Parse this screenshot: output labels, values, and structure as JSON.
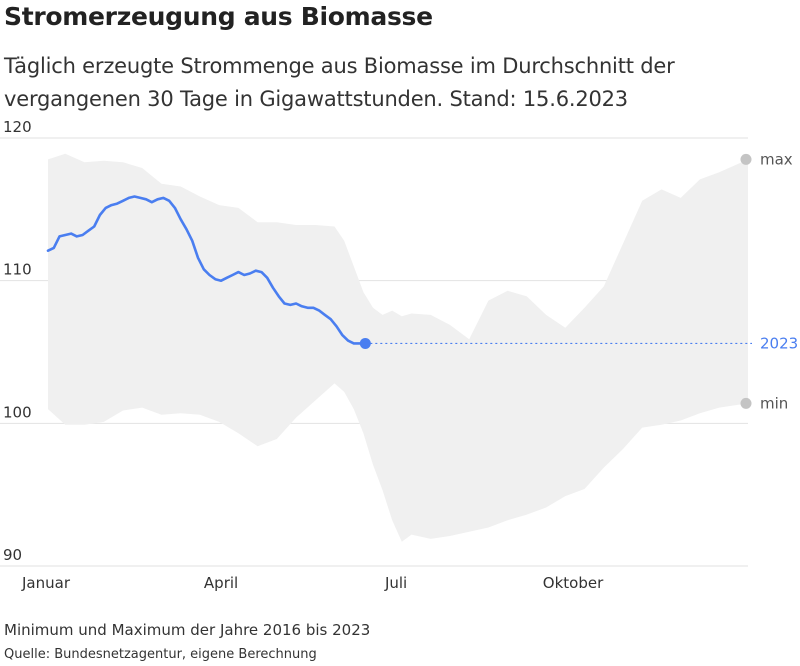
{
  "title": "Stromerzeugung aus Biomasse",
  "subtitle": "Täglich erzeugte Strommenge aus Biomasse im Durchschnitt der vergangenen 30 Tage in Gigawattstunden. Stand: 15.6.2023",
  "note": "Minimum und Maximum der Jahre 2016 bis 2023",
  "source": "Quelle: Bundesnetzagentur, eigene Berechnung",
  "colors": {
    "line": "#4a7ef0",
    "band": "#f0f0f0",
    "marker_gray": "#c4c4c4",
    "grid": "#e2e2e2"
  },
  "chart_data": {
    "type": "line",
    "title": "Stromerzeugung aus Biomasse",
    "xlabel": "",
    "ylabel": "",
    "ylim": [
      90,
      120
    ],
    "xlim": [
      1,
      365
    ],
    "x_unit": "day of year",
    "yticks": [
      90,
      100,
      110,
      120
    ],
    "xticks": [
      {
        "label": "Januar",
        "day": 1
      },
      {
        "label": "April",
        "day": 91
      },
      {
        "label": "Juli",
        "day": 182
      },
      {
        "label": "Oktober",
        "day": 274
      }
    ],
    "grid": true,
    "band": {
      "days": [
        1,
        10,
        20,
        30,
        40,
        50,
        60,
        70,
        80,
        90,
        100,
        110,
        120,
        130,
        140,
        150,
        155,
        160,
        165,
        170,
        175,
        180,
        185,
        190,
        200,
        210,
        220,
        230,
        240,
        250,
        260,
        270,
        280,
        290,
        300,
        310,
        320,
        330,
        340,
        350,
        360,
        365
      ],
      "max": [
        118.5,
        118.9,
        118.3,
        118.4,
        118.3,
        117.9,
        116.8,
        116.6,
        115.9,
        115.3,
        115.1,
        114.1,
        114.1,
        113.9,
        113.9,
        113.8,
        112.8,
        111.0,
        109.2,
        108.1,
        107.6,
        107.9,
        107.5,
        107.7,
        107.6,
        106.9,
        105.9,
        108.6,
        109.3,
        108.9,
        107.6,
        106.7,
        108.1,
        109.6,
        112.6,
        115.6,
        116.4,
        115.8,
        117.1,
        117.6,
        118.2,
        118.5
      ],
      "min": [
        101.0,
        99.9,
        99.9,
        100.1,
        100.9,
        101.1,
        100.6,
        100.7,
        100.6,
        100.1,
        99.3,
        98.4,
        98.9,
        100.4,
        101.6,
        102.8,
        102.2,
        101.0,
        99.3,
        97.1,
        95.3,
        93.2,
        91.7,
        92.2,
        91.9,
        92.1,
        92.4,
        92.7,
        93.2,
        93.6,
        94.1,
        94.9,
        95.4,
        96.9,
        98.2,
        99.7,
        99.9,
        100.2,
        100.7,
        101.1,
        101.3,
        101.4
      ]
    },
    "series": [
      {
        "name": "2023",
        "x": [
          1,
          4,
          7,
          10,
          13,
          16,
          19,
          22,
          25,
          28,
          31,
          34,
          37,
          40,
          43,
          46,
          49,
          52,
          55,
          58,
          61,
          64,
          67,
          70,
          73,
          76,
          79,
          82,
          85,
          88,
          91,
          94,
          97,
          100,
          103,
          106,
          109,
          112,
          115,
          118,
          121,
          124,
          127,
          130,
          133,
          136,
          139,
          142,
          145,
          148,
          151,
          154,
          157,
          160,
          163,
          166
        ],
        "y": [
          112.1,
          112.3,
          113.1,
          113.2,
          113.3,
          113.1,
          113.2,
          113.5,
          113.8,
          114.6,
          115.1,
          115.3,
          115.4,
          115.6,
          115.8,
          115.9,
          115.8,
          115.7,
          115.5,
          115.7,
          115.8,
          115.6,
          115.1,
          114.3,
          113.6,
          112.8,
          111.6,
          110.8,
          110.4,
          110.1,
          110.0,
          110.2,
          110.4,
          110.6,
          110.4,
          110.5,
          110.7,
          110.6,
          110.2,
          109.5,
          108.9,
          108.4,
          108.3,
          108.4,
          108.2,
          108.1,
          108.1,
          107.9,
          107.6,
          107.3,
          106.8,
          106.2,
          105.8,
          105.6,
          105.6,
          105.6
        ]
      }
    ],
    "current": {
      "day": 166,
      "value": 105.6,
      "label": "2023"
    },
    "legend": {
      "max_label": "max",
      "min_label": "min",
      "year_label": "2023"
    }
  }
}
